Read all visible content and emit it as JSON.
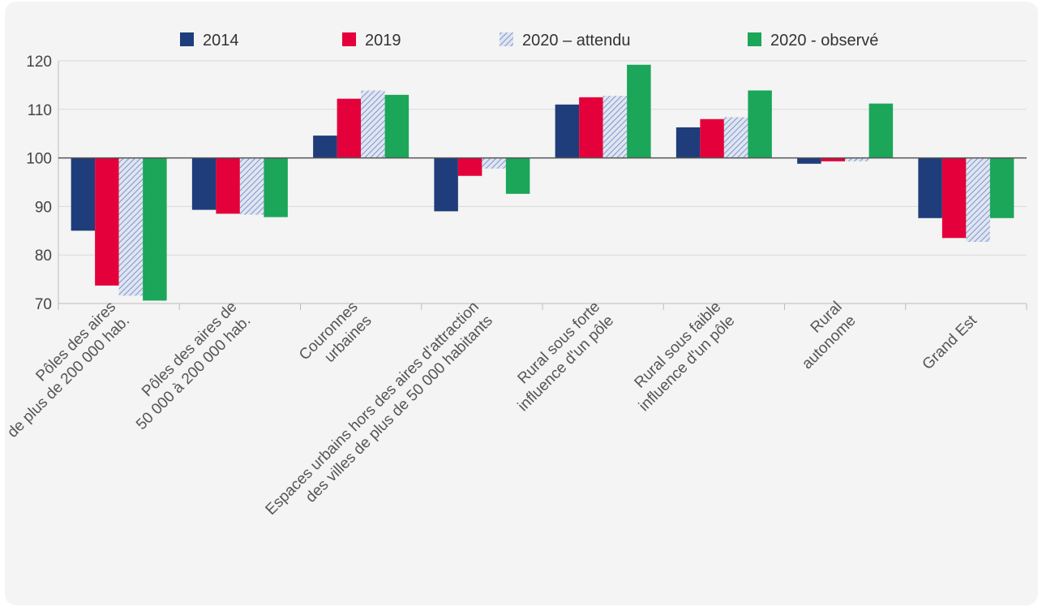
{
  "chart_data": {
    "type": "bar",
    "title": "",
    "xlabel": "",
    "ylabel": "",
    "ylim": [
      70,
      120
    ],
    "baseline": 100,
    "yticks": [
      70,
      80,
      90,
      100,
      110,
      120
    ],
    "grid": true,
    "legend_position": "top",
    "categories": [
      [
        "Pôles des aires",
        "de plus de 200 000 hab."
      ],
      [
        "Pôles des aires de",
        "50 000 à 200 000 hab."
      ],
      [
        "Couronnes",
        "urbaines"
      ],
      [
        "Espaces urbains hors des aires d'attraction",
        "des villes de plus de 50 000 habitants"
      ],
      [
        "Rural sous forte",
        "influence d'un pôle"
      ],
      [
        "Rural sous faible",
        "influence d'un pôle"
      ],
      [
        "Rural",
        "autonome"
      ],
      [
        "Grand Est"
      ]
    ],
    "series": [
      {
        "name": "2014",
        "color": "#1f3d7a",
        "pattern": "solid",
        "values": [
          85,
          89.3,
          104.6,
          89,
          111,
          106.3,
          98.8,
          87.6
        ]
      },
      {
        "name": "2019",
        "color": "#e4003a",
        "pattern": "solid",
        "values": [
          73.7,
          88.5,
          112.2,
          96.3,
          112.5,
          108,
          99.3,
          83.5
        ]
      },
      {
        "name": "2020 – attendu",
        "color": "#8fa3d1",
        "pattern": "hatched",
        "values": [
          71.6,
          88.3,
          113.9,
          97.8,
          112.8,
          108.4,
          99.3,
          82.7
        ]
      },
      {
        "name": "2020 - observé",
        "color": "#1ba659",
        "pattern": "solid",
        "values": [
          70.6,
          87.8,
          113,
          92.6,
          119.2,
          113.9,
          111.2,
          87.6
        ]
      }
    ]
  }
}
